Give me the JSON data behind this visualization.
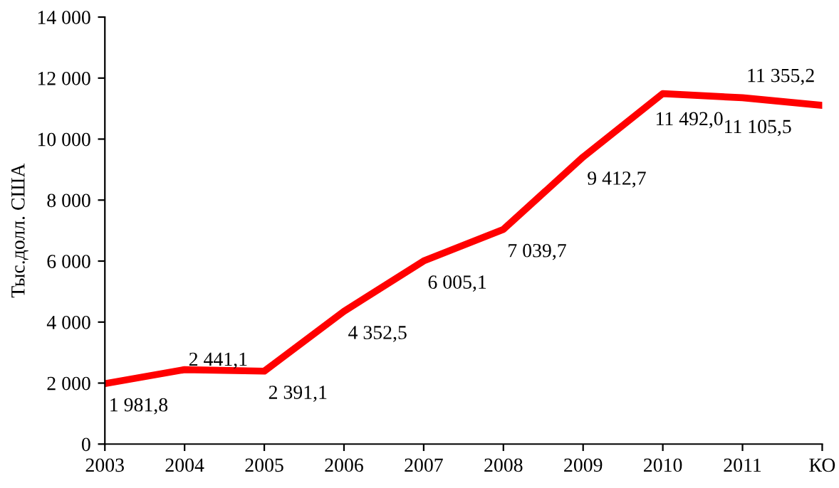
{
  "chart_data": {
    "type": "line",
    "ylabel": "Тыс.долл. США",
    "categories": [
      "2003",
      "2004",
      "2005",
      "2006",
      "2007",
      "2008",
      "2009",
      "2010",
      "2011",
      "КО"
    ],
    "series": [
      {
        "color": "#ff0000",
        "values": [
          1981.8,
          2441.1,
          2391.1,
          4352.5,
          6005.1,
          7039.7,
          9412.7,
          11492.0,
          11355.2,
          11105.5
        ],
        "value_labels": [
          "1 981,8",
          "2 441,1",
          "2 391,1",
          "4 352,5",
          "6 005,1",
          "7 039,7",
          "9 412,7",
          "11 492,0",
          "11 355,2",
          "11 105,5"
        ]
      }
    ],
    "ylim": [
      0,
      14000
    ],
    "yticks": [
      0,
      {
        "value": 2000,
        "label": "2 000"
      },
      {
        "value": 4000,
        "label": "4 000"
      },
      {
        "value": 6000,
        "label": "6 000"
      },
      {
        "value": 8000,
        "label": "8 000"
      },
      {
        "value": 10000,
        "label": "10 000"
      },
      {
        "value": 12000,
        "label": "12 000"
      },
      {
        "value": 14000,
        "label": "14 000"
      }
    ],
    "grid": false,
    "legend": false,
    "marker": "none",
    "line_style": "solid"
  }
}
